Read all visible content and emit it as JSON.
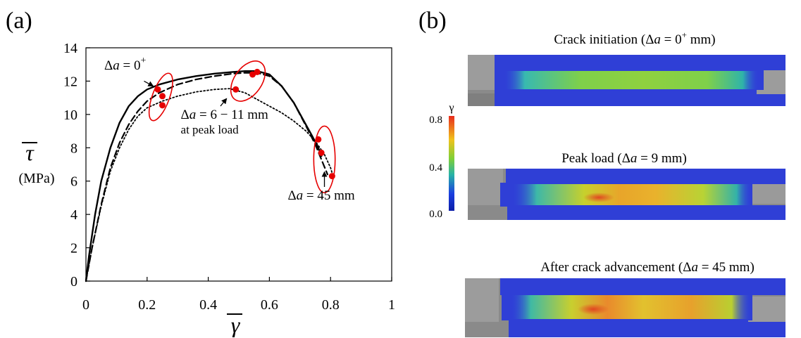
{
  "panel_a": {
    "label": "(a)"
  },
  "panel_b": {
    "label": "(b)",
    "colorbar": {
      "symbol": "γ",
      "ticks": [
        "0.8",
        "0.4",
        "0.0"
      ],
      "colors": [
        "#e82b1d",
        "#f0c21c",
        "#7fcf37",
        "#27b3a7",
        "#1b3fe0",
        "#0b1ea8"
      ]
    },
    "images": [
      {
        "caption_pre": "Crack initiation (",
        "caption_delta": "Δ",
        "caption_a": "a",
        "caption_eq": " = 0",
        "caption_sup": "+",
        "caption_post": " mm)",
        "description": "DIC strain field at crack initiation"
      },
      {
        "caption_pre": "Peak load (",
        "caption_delta": "Δ",
        "caption_a": "a",
        "caption_eq": " = 9",
        "caption_sup": "",
        "caption_post": " mm)",
        "description": "DIC strain field at peak load"
      },
      {
        "caption_pre": "After crack advancement (",
        "caption_delta": "Δ",
        "caption_a": "a",
        "caption_eq": " = 45",
        "caption_sup": "",
        "caption_post": " mm)",
        "description": "DIC strain field after crack advancement"
      }
    ]
  },
  "chart_data": {
    "type": "line",
    "xlabel": "γ",
    "ylabel": "τ",
    "ylabel_unit": "(MPa)",
    "xlim": [
      0,
      1
    ],
    "ylim": [
      0,
      14
    ],
    "xticks": [
      "0",
      "0.2",
      "0.4",
      "0.6",
      "0.8",
      "1"
    ],
    "yticks": [
      "0",
      "2",
      "4",
      "6",
      "8",
      "10",
      "12",
      "14"
    ],
    "grid": false,
    "series": [
      {
        "style": "solid",
        "color": "#000000",
        "x": [
          0,
          0.01,
          0.03,
          0.05,
          0.08,
          0.11,
          0.14,
          0.17,
          0.2,
          0.24,
          0.3,
          0.36,
          0.42,
          0.48,
          0.52,
          0.56,
          0.6,
          0.64,
          0.68,
          0.71,
          0.74,
          0.76,
          0.77
        ],
        "y": [
          0,
          1.5,
          4.0,
          6.0,
          8.0,
          9.5,
          10.5,
          11.1,
          11.5,
          11.8,
          12.1,
          12.3,
          12.45,
          12.55,
          12.6,
          12.6,
          12.4,
          11.7,
          10.7,
          9.7,
          8.7,
          8.0,
          7.5
        ]
      },
      {
        "style": "dashed",
        "color": "#000000",
        "x": [
          0,
          0.02,
          0.05,
          0.08,
          0.11,
          0.14,
          0.17,
          0.2,
          0.24,
          0.3,
          0.36,
          0.42,
          0.48,
          0.52,
          0.56,
          0.6,
          0.64,
          0.68,
          0.72,
          0.75,
          0.77,
          0.79
        ],
        "y": [
          0,
          2.0,
          4.6,
          6.8,
          8.3,
          9.4,
          10.2,
          10.8,
          11.3,
          11.8,
          12.1,
          12.3,
          12.45,
          12.5,
          12.5,
          12.3,
          11.7,
          10.7,
          9.3,
          8.2,
          7.3,
          6.4
        ]
      },
      {
        "style": "dotted",
        "color": "#000000",
        "x": [
          0,
          0.02,
          0.05,
          0.08,
          0.11,
          0.14,
          0.17,
          0.2,
          0.25,
          0.3,
          0.36,
          0.42,
          0.47,
          0.52,
          0.58,
          0.64,
          0.68,
          0.72,
          0.75,
          0.78,
          0.8,
          0.81
        ],
        "y": [
          0,
          2.0,
          4.5,
          6.6,
          8.0,
          9.1,
          9.9,
          10.4,
          10.8,
          11.1,
          11.35,
          11.5,
          11.55,
          11.3,
          10.7,
          10.1,
          9.6,
          9.0,
          8.4,
          7.6,
          6.8,
          6.2
        ]
      }
    ],
    "points": {
      "color": "#e60000",
      "x": [
        0.235,
        0.25,
        0.25,
        0.49,
        0.545,
        0.56,
        0.76,
        0.77,
        0.805
      ],
      "y": [
        11.5,
        11.1,
        10.55,
        11.5,
        12.4,
        12.55,
        8.5,
        7.7,
        6.3
      ]
    },
    "groups": [
      {
        "color": "#e60000",
        "ellipse": {
          "cx": 0.245,
          "cy": 11.05,
          "rx": 0.028,
          "ry": 1.5,
          "angle": 20
        }
      },
      {
        "color": "#e60000",
        "ellipse": {
          "cx": 0.53,
          "cy": 12.0,
          "rx": 0.045,
          "ry": 1.35,
          "angle": 35
        }
      },
      {
        "color": "#e60000",
        "ellipse": {
          "cx": 0.78,
          "cy": 7.3,
          "rx": 0.035,
          "ry": 2.0,
          "angle": 0
        }
      }
    ],
    "annotations": [
      {
        "pre": "Δ",
        "a": "a",
        "eq": " = 0",
        "sup": "+",
        "extra": "",
        "tx": 0.06,
        "ty": 12.7,
        "arrow_from": [
          0.19,
          12.0
        ],
        "arrow_to": [
          0.22,
          11.7
        ]
      },
      {
        "pre": "Δ",
        "a": "a",
        "eq": " = 6 − 11 mm",
        "sup": "",
        "extra": "at peak load",
        "tx": 0.31,
        "ty": 9.75,
        "arrow_from": [
          0.44,
          10.5
        ],
        "arrow_to": [
          0.46,
          10.95
        ]
      },
      {
        "pre": "Δ",
        "a": "a",
        "eq": " = 45 mm",
        "sup": "",
        "extra": "",
        "tx": 0.66,
        "ty": 4.9,
        "arrow_from": [
          0.78,
          5.65
        ],
        "arrow_to": [
          0.78,
          6.55
        ]
      }
    ]
  }
}
